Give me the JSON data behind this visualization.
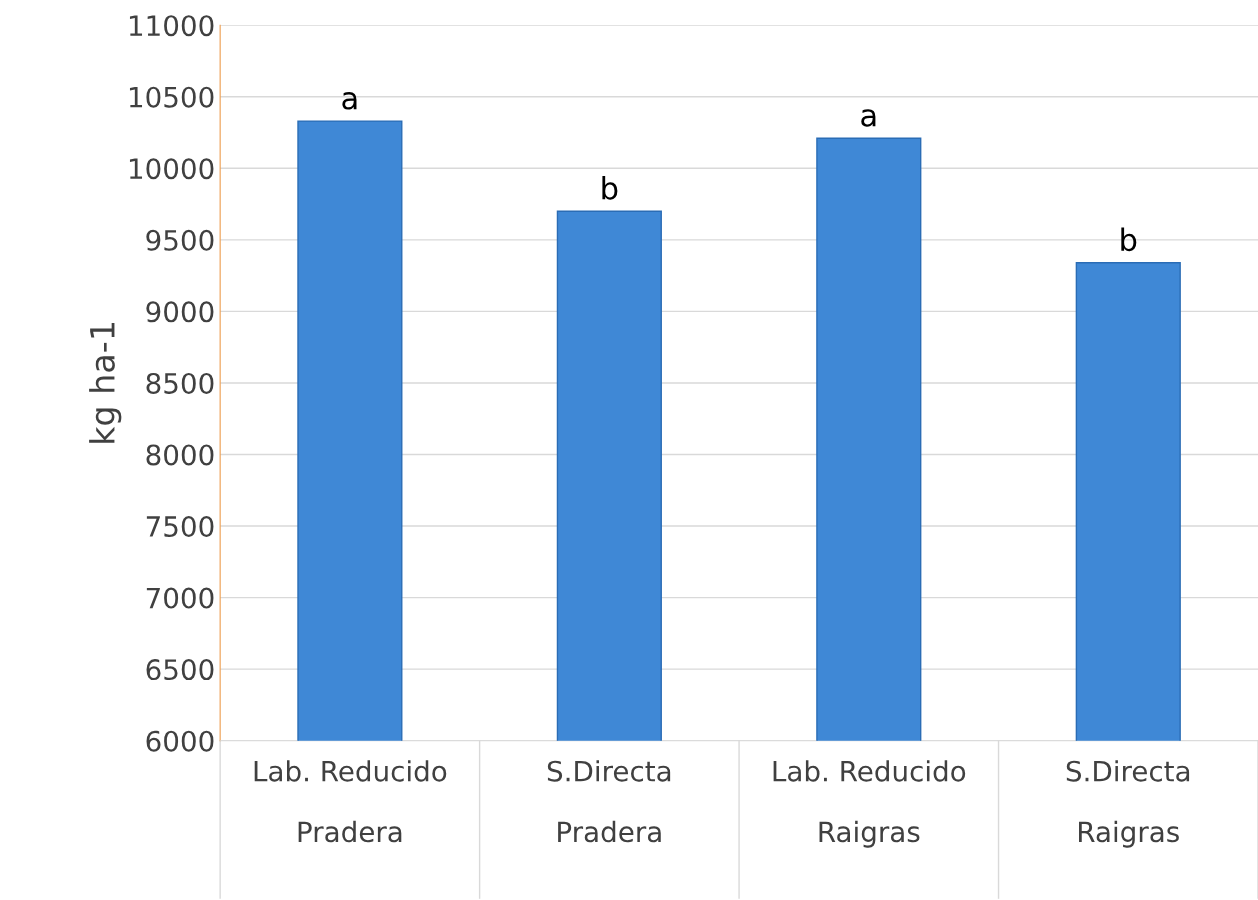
{
  "chart_data": {
    "type": "bar",
    "ylabel": "kg ha-1",
    "categories": [
      "Lab. Reducido\nPradera",
      "S.Directa\nPradera",
      "Lab. Reducido\nRaigras",
      "S.Directa\nRaigras"
    ],
    "values": [
      10330,
      9700,
      10210,
      9340
    ],
    "color": "#3f88d6",
    "ylim": [
      6000,
      11000
    ],
    "yticks": [
      6000,
      6500,
      7000,
      7500,
      8000,
      8500,
      9000,
      9500,
      10000,
      10500,
      11000
    ],
    "grid": "y",
    "annotations": [
      {
        "text": "a",
        "x": "Lab. Reducido\nPradera",
        "y": 10330
      },
      {
        "text": "b",
        "x": "S.Directa\nPradera",
        "y": 9700
      },
      {
        "text": "a",
        "x": "Lab. Reducido\nRaigras",
        "y": 10210
      },
      {
        "text": "b",
        "x": "S.Directa\nRaigras",
        "y": 9340
      }
    ]
  }
}
